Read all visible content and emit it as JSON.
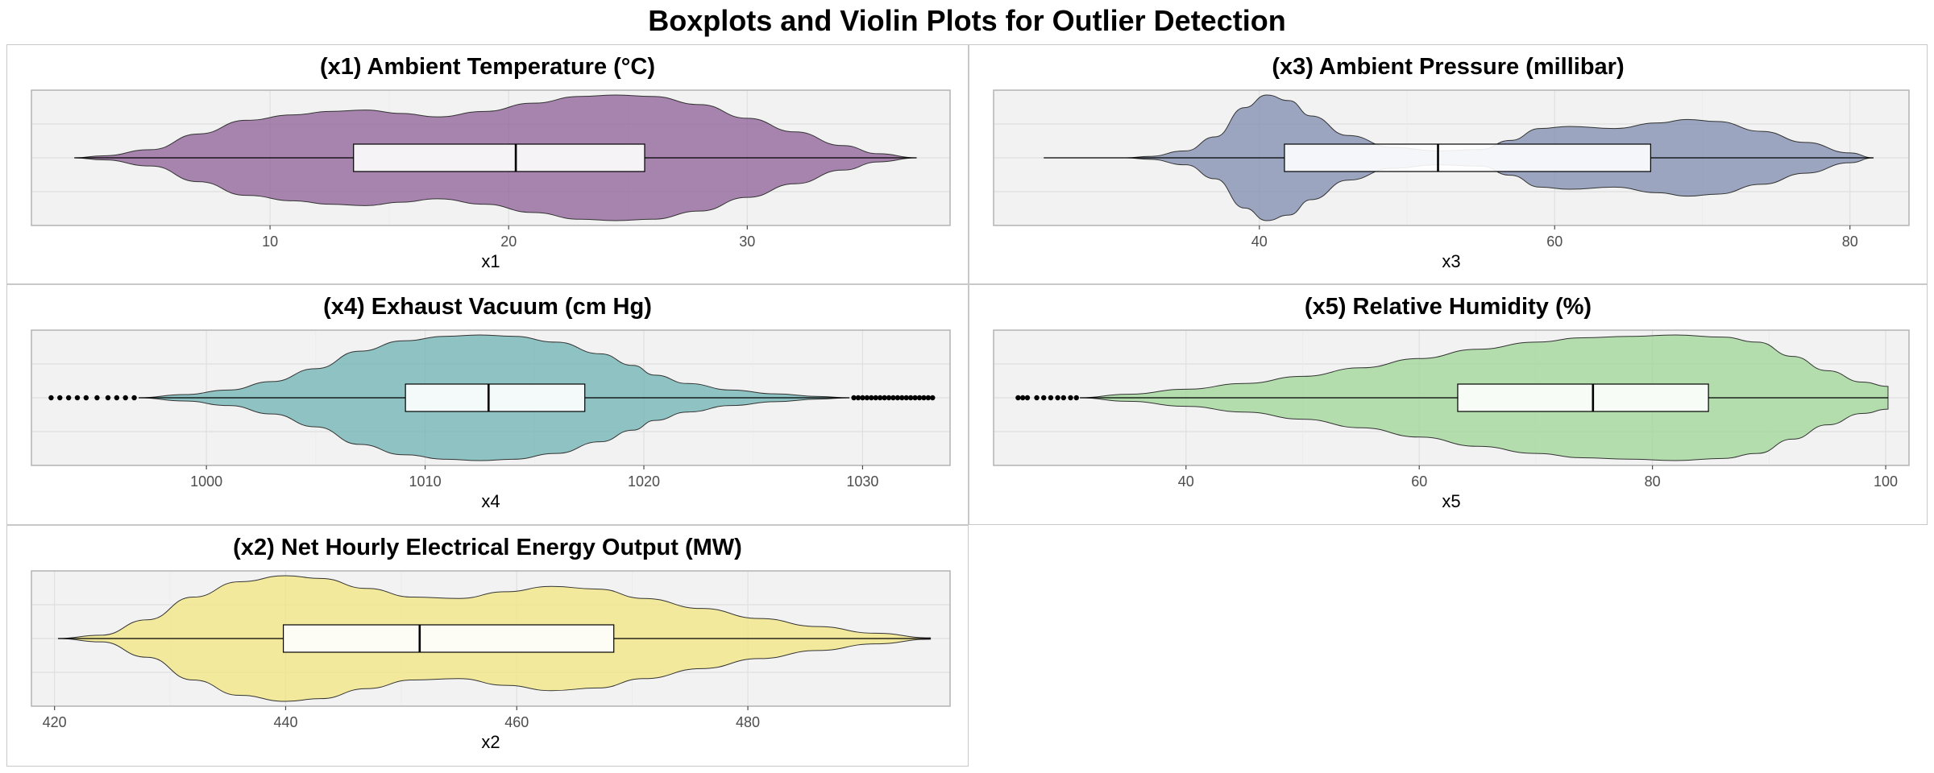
{
  "title": "Boxplots and Violin Plots for Outlier Detection",
  "chart_data": [
    {
      "type": "violin",
      "variable": "x1",
      "title": "(x1) Ambient Temperature (°C)",
      "xlabel": "x1",
      "xlim": [
        0.0,
        38.5
      ],
      "ticks": [
        10,
        20,
        30
      ],
      "fill": "#8c5f96",
      "box": {
        "min": 1.8,
        "q1": 13.5,
        "median": 20.3,
        "q3": 25.7,
        "max": 37.1
      },
      "outliers": [],
      "density": [
        [
          1.8,
          0
        ],
        [
          3,
          0.03
        ],
        [
          5,
          0.12
        ],
        [
          7,
          0.35
        ],
        [
          9,
          0.55
        ],
        [
          11,
          0.63
        ],
        [
          12.5,
          0.68
        ],
        [
          14,
          0.7
        ],
        [
          15.5,
          0.65
        ],
        [
          17,
          0.6
        ],
        [
          19,
          0.68
        ],
        [
          21,
          0.8
        ],
        [
          23,
          0.9
        ],
        [
          24.5,
          0.92
        ],
        [
          26,
          0.9
        ],
        [
          28,
          0.78
        ],
        [
          30,
          0.58
        ],
        [
          32,
          0.38
        ],
        [
          34,
          0.18
        ],
        [
          35.5,
          0.06
        ],
        [
          37.1,
          0
        ]
      ]
    },
    {
      "type": "violin",
      "variable": "x3",
      "title": "(x3) Ambient Pressure (millibar)",
      "xlabel": "x3",
      "xlim": [
        22,
        84
      ],
      "ticks": [
        40,
        60,
        80
      ],
      "fill": "#7d8bae",
      "box": {
        "min": 25.4,
        "q1": 41.7,
        "median": 52.1,
        "q3": 66.5,
        "max": 81.6
      },
      "outliers": [],
      "density": [
        [
          25.4,
          0
        ],
        [
          31,
          0
        ],
        [
          32.5,
          0.02
        ],
        [
          35,
          0.1
        ],
        [
          37,
          0.3
        ],
        [
          39,
          0.72
        ],
        [
          40.5,
          0.9
        ],
        [
          42,
          0.82
        ],
        [
          43.5,
          0.6
        ],
        [
          46,
          0.32
        ],
        [
          49,
          0.15
        ],
        [
          52,
          0.1
        ],
        [
          55,
          0.12
        ],
        [
          57,
          0.25
        ],
        [
          59,
          0.42
        ],
        [
          61,
          0.45
        ],
        [
          64,
          0.42
        ],
        [
          67,
          0.5
        ],
        [
          69,
          0.55
        ],
        [
          71,
          0.52
        ],
        [
          74,
          0.38
        ],
        [
          77,
          0.22
        ],
        [
          80,
          0.07
        ],
        [
          81.6,
          0
        ]
      ]
    },
    {
      "type": "violin",
      "variable": "x4",
      "title": "(x4) Exhaust Vacuum (cm Hg)",
      "xlabel": "x4",
      "xlim": [
        992,
        1034
      ],
      "ticks": [
        1000,
        1010,
        1020,
        1030
      ],
      "fill": "#6eb2b1",
      "box": {
        "min": 996.9,
        "q1": 1009.1,
        "median": 1012.9,
        "q3": 1017.3,
        "max": 1029.4
      },
      "outliers": [
        992.9,
        993.3,
        993.7,
        994.1,
        994.5,
        995.0,
        995.5,
        995.9,
        996.3,
        996.7,
        1029.6,
        1029.8,
        1030.0,
        1030.2,
        1030.4,
        1030.6,
        1030.8,
        1031.0,
        1031.2,
        1031.4,
        1031.6,
        1031.8,
        1032.0,
        1032.2,
        1032.4,
        1032.6,
        1032.8,
        1033.0,
        1033.2
      ],
      "density": [
        [
          996.9,
          0
        ],
        [
          999,
          0.05
        ],
        [
          1001,
          0.12
        ],
        [
          1003,
          0.25
        ],
        [
          1005,
          0.45
        ],
        [
          1007,
          0.72
        ],
        [
          1009,
          0.88
        ],
        [
          1011,
          0.95
        ],
        [
          1012.5,
          0.97
        ],
        [
          1014,
          0.95
        ],
        [
          1016,
          0.86
        ],
        [
          1018,
          0.68
        ],
        [
          1019.5,
          0.5
        ],
        [
          1020.5,
          0.35
        ],
        [
          1022,
          0.22
        ],
        [
          1024,
          0.12
        ],
        [
          1026,
          0.06
        ],
        [
          1028,
          0.02
        ],
        [
          1029.4,
          0
        ]
      ]
    },
    {
      "type": "violin",
      "variable": "x5",
      "title": "(x5) Relative Humidity (%)",
      "xlabel": "x5",
      "xlim": [
        23.5,
        102
      ],
      "ticks": [
        40,
        60,
        80,
        100
      ],
      "fill": "#9ed594",
      "box": {
        "min": 30.9,
        "q1": 63.3,
        "median": 74.9,
        "q3": 84.8,
        "max": 100.2
      },
      "outliers": [
        25.6,
        26.0,
        26.4,
        27.2,
        27.8,
        28.4,
        29.0,
        29.5,
        30.1,
        30.6
      ],
      "density": [
        [
          30.9,
          0
        ],
        [
          35,
          0.05
        ],
        [
          40,
          0.12
        ],
        [
          45,
          0.2
        ],
        [
          50,
          0.3
        ],
        [
          55,
          0.42
        ],
        [
          60,
          0.55
        ],
        [
          65,
          0.68
        ],
        [
          70,
          0.78
        ],
        [
          74,
          0.84
        ],
        [
          78,
          0.86
        ],
        [
          82,
          0.88
        ],
        [
          86,
          0.85
        ],
        [
          89,
          0.78
        ],
        [
          92,
          0.58
        ],
        [
          95,
          0.38
        ],
        [
          98,
          0.22
        ],
        [
          100.2,
          0.16
        ]
      ]
    },
    {
      "type": "violin",
      "variable": "x2",
      "title": "(x2) Net Hourly Electrical Energy Output (MW)",
      "xlabel": "x2",
      "xlim": [
        418,
        497.5
      ],
      "ticks": [
        420,
        440,
        460,
        480
      ],
      "fill": "#f2e680",
      "box": {
        "min": 420.3,
        "q1": 439.8,
        "median": 451.6,
        "q3": 468.4,
        "max": 495.8
      },
      "outliers": [],
      "density": [
        [
          420.3,
          0
        ],
        [
          424,
          0.05
        ],
        [
          428,
          0.28
        ],
        [
          432,
          0.62
        ],
        [
          436,
          0.85
        ],
        [
          440,
          0.94
        ],
        [
          443,
          0.9
        ],
        [
          447,
          0.75
        ],
        [
          451,
          0.62
        ],
        [
          455,
          0.6
        ],
        [
          459,
          0.7
        ],
        [
          463,
          0.78
        ],
        [
          467,
          0.74
        ],
        [
          471,
          0.6
        ],
        [
          476,
          0.45
        ],
        [
          481,
          0.3
        ],
        [
          486,
          0.18
        ],
        [
          491,
          0.08
        ],
        [
          495.8,
          0.01
        ]
      ]
    }
  ]
}
